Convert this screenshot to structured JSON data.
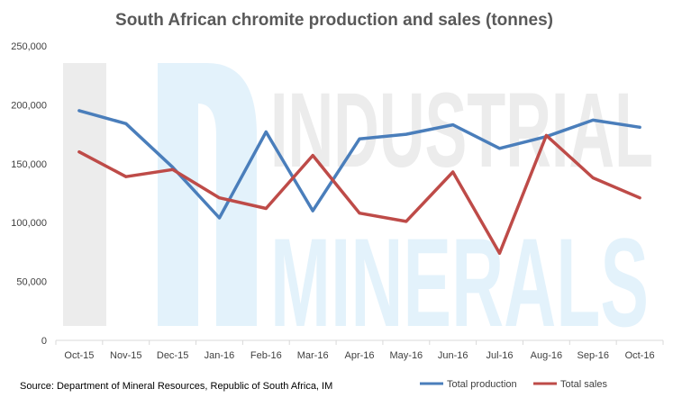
{
  "chart_data": {
    "type": "line",
    "title": "South African chromite production and sales (tonnes)",
    "categories": [
      "Oct-15",
      "Nov-15",
      "Dec-15",
      "Jan-16",
      "Feb-16",
      "Mar-16",
      "Apr-16",
      "May-16",
      "Jun-16",
      "Jul-16",
      "Aug-16",
      "Sep-16",
      "Oct-16"
    ],
    "series": [
      {
        "name": "Total production",
        "color": "#4a7ebb",
        "values": [
          195000,
          184000,
          147000,
          104000,
          177000,
          110000,
          171000,
          175000,
          183000,
          163000,
          173000,
          187000,
          181000
        ]
      },
      {
        "name": "Total sales",
        "color": "#be4b48",
        "values": [
          160000,
          139000,
          145000,
          121000,
          112000,
          157000,
          108000,
          101000,
          143000,
          74000,
          174000,
          138000,
          121000
        ]
      }
    ],
    "ylim": [
      0,
      250000
    ],
    "yticks": [
      "0",
      "50,000",
      "100,000",
      "150,000",
      "200,000",
      "250,000"
    ],
    "grid": false,
    "legend_position": "bottom-right"
  },
  "source": "Source: Department of Mineral Resources, Republic of South Africa, IM",
  "watermark": {
    "line1": "INDUSTRIAL",
    "line2": "MINERALS"
  }
}
